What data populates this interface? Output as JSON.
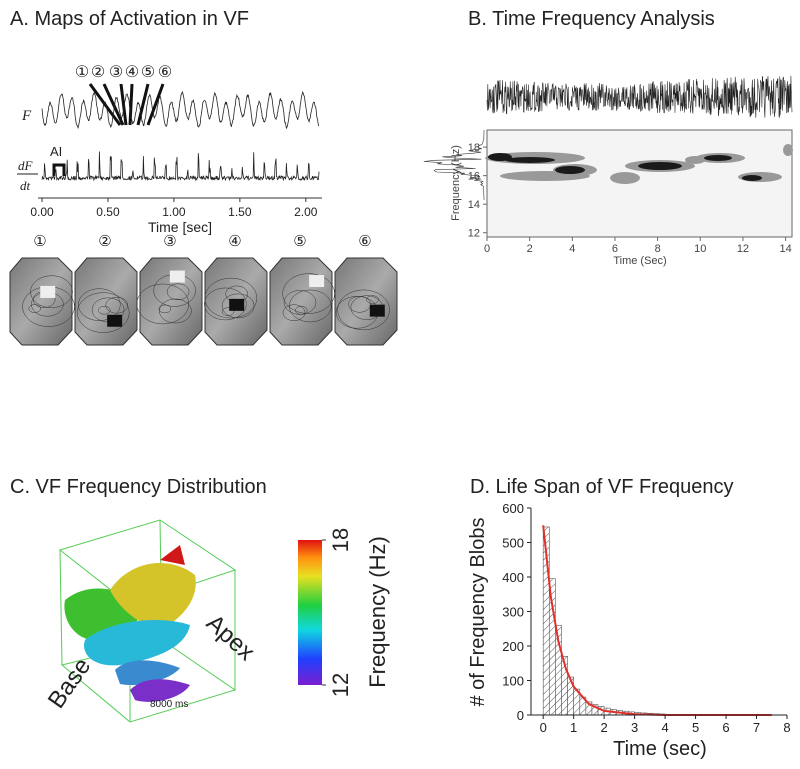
{
  "chart_data": [
    {
      "type": "trace",
      "title": "A. Maps of Activation in VF",
      "signal_labels": [
        "F",
        "dF",
        "dt"
      ],
      "annotation": "AI",
      "events": [
        "①",
        "②",
        "③",
        "④",
        "⑤",
        "⑥"
      ],
      "xlabel": "Time [sec]",
      "xlim": [
        0,
        2.1
      ],
      "xticks": [
        {
          "value": 0,
          "label": "0.00"
        },
        {
          "value": 0.5,
          "label": "0.50"
        },
        {
          "value": 1,
          "label": "1.00"
        },
        {
          "value": 1.5,
          "label": "1.50"
        },
        {
          "value": 2,
          "label": "2.00"
        }
      ]
    },
    {
      "type": "spectrogram",
      "title": "B. Time Frequency Analysis",
      "xlabel": "Time (Sec)",
      "ylabel": "Frequency (Hz)",
      "xlim": [
        0,
        14.3
      ],
      "xticks": [
        0,
        2,
        4,
        6,
        8,
        10,
        12,
        14
      ],
      "ylim": [
        11.7,
        19.2
      ],
      "yticks": [
        12,
        14,
        16,
        18
      ]
    },
    {
      "type": "volume",
      "title": "C. VF Frequency Distribution",
      "labels": [
        "Base",
        "Apex",
        "8000 ms"
      ],
      "colorbar": {
        "label": "Frequency (Hz)",
        "lim": [
          12,
          18
        ],
        "ticks": [
          12,
          18
        ]
      }
    },
    {
      "type": "histogram",
      "title": "D. Life Span of VF Frequency",
      "xlabel": "Time (sec)",
      "ylabel": "# of Frequency Blobs",
      "bins": [
        0,
        0.2,
        0.4,
        0.6,
        0.8,
        1,
        1.2,
        1.4,
        1.6,
        1.8,
        2,
        2.2,
        2.4,
        2.6,
        2.8,
        3,
        3.2,
        3.4,
        3.6,
        3.8,
        4
      ],
      "counts": [
        545,
        395,
        260,
        170,
        110,
        75,
        52,
        38,
        30,
        25,
        20,
        16,
        13,
        11,
        9,
        7,
        6,
        5,
        4,
        3
      ],
      "fit": {
        "color": "#e0302a",
        "x": [
          0,
          0.25,
          0.5,
          0.75,
          1,
          1.5,
          2,
          3,
          4,
          5,
          6,
          7,
          7.5
        ],
        "y": [
          550,
          343,
          213,
          133,
          82,
          32,
          12,
          2,
          0,
          0,
          0,
          0,
          0
        ]
      },
      "xlim": [
        -0.4,
        8
      ],
      "xticks": [
        0,
        1,
        2,
        3,
        4,
        5,
        6,
        7,
        8
      ],
      "ylim": [
        0,
        600
      ],
      "yticks": [
        0,
        100,
        200,
        300,
        400,
        500,
        600
      ]
    }
  ]
}
